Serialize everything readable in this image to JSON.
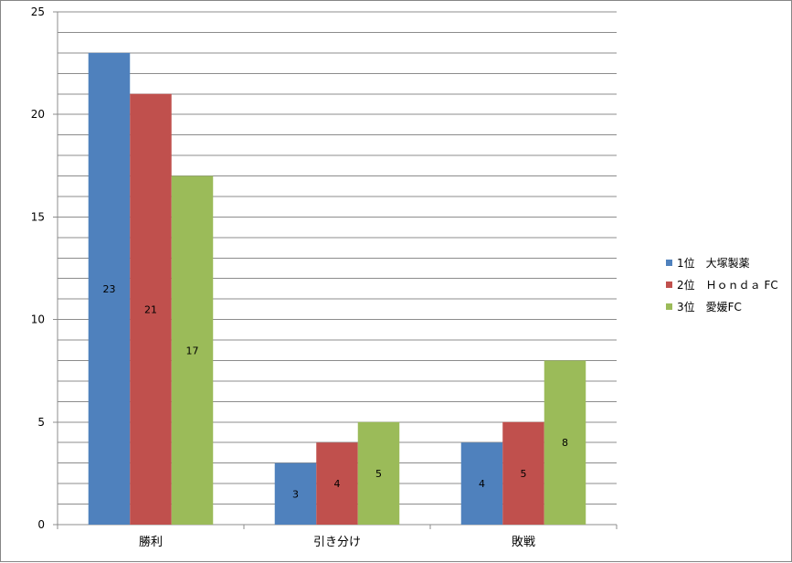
{
  "chart_data": {
    "type": "bar",
    "categories": [
      "勝利",
      "引き分け",
      "敗戦"
    ],
    "series": [
      {
        "name": "1位　大塚製薬",
        "values": [
          23,
          3,
          4
        ],
        "color": "#4f81bd"
      },
      {
        "name": "2位　Ｈｏｎｄａ FC",
        "values": [
          21,
          4,
          5
        ],
        "color": "#c0504d"
      },
      {
        "name": "3位　愛媛FC",
        "values": [
          17,
          5,
          8
        ],
        "color": "#9bbb59"
      }
    ],
    "ylim": [
      0,
      25
    ],
    "yticks": [
      "0",
      "5",
      "10",
      "15",
      "20",
      "25"
    ],
    "minor_grid_step": 1,
    "grid": true,
    "legend": "right",
    "data_labels": true
  }
}
